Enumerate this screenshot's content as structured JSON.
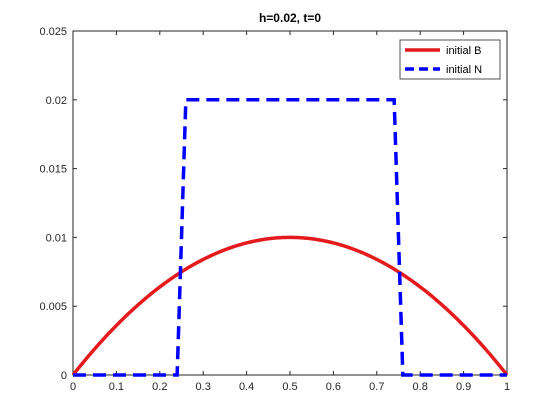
{
  "chart_data": {
    "type": "line",
    "title": "h=0.02, t=0",
    "xlabel": "",
    "ylabel": "",
    "xlim": [
      0,
      1
    ],
    "ylim": [
      0,
      0.025
    ],
    "x_ticks": [
      0,
      0.1,
      0.2,
      0.3,
      0.4,
      0.5,
      0.6,
      0.7,
      0.8,
      0.9,
      1
    ],
    "x_tick_labels": [
      "0",
      "0.1",
      "0.2",
      "0.3",
      "0.4",
      "0.5",
      "0.6",
      "0.7",
      "0.8",
      "0.9",
      "1"
    ],
    "y_ticks": [
      0,
      0.005,
      0.01,
      0.015,
      0.02,
      0.025
    ],
    "y_tick_labels": [
      "0",
      "0.005",
      "0.01",
      "0.015",
      "0.02",
      "0.025"
    ],
    "grid": false,
    "legend_position": "top-right",
    "series": [
      {
        "name": "initial B",
        "style": "solid",
        "color": "#e41a1c",
        "x": [
          0,
          0.05,
          0.1,
          0.15,
          0.2,
          0.25,
          0.3,
          0.35,
          0.4,
          0.45,
          0.5,
          0.55,
          0.6,
          0.65,
          0.7,
          0.75,
          0.8,
          0.85,
          0.9,
          0.95,
          1
        ],
        "y": [
          0,
          0.0019,
          0.0036,
          0.0051,
          0.0064,
          0.0075,
          0.0084,
          0.0091,
          0.0096,
          0.0099,
          0.01,
          0.0099,
          0.0096,
          0.0091,
          0.0084,
          0.0075,
          0.0064,
          0.0051,
          0.0036,
          0.0019,
          0
        ]
      },
      {
        "name": "initial N",
        "style": "dashed",
        "color": "#0000ff",
        "x": [
          0,
          0.24,
          0.26,
          0.74,
          0.76,
          1
        ],
        "y": [
          0,
          0,
          0.02,
          0.02,
          0,
          0
        ]
      }
    ]
  }
}
